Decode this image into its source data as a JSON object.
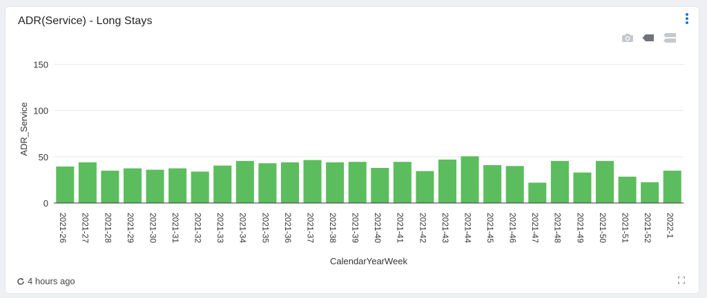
{
  "card": {
    "title": "ADR(Service) - Long Stays",
    "refresh_text": "4 hours ago"
  },
  "icons": {
    "menu": "kebab-menu-icon",
    "camera": "camera-icon",
    "tag": "tag-icon",
    "toggle": "toggle-icon",
    "refresh": "refresh-icon",
    "expand": "expand-icon"
  },
  "colors": {
    "bar": "#5cbd5e",
    "grid": "#e6e6e6",
    "axis": "#333333"
  },
  "chart_data": {
    "type": "bar",
    "xlabel": "CalendarYearWeek",
    "ylabel": "ADR_Service",
    "ylim": [
      0,
      160
    ],
    "yticks": [
      0,
      50,
      100,
      150
    ],
    "grid": true,
    "categories": [
      "2021-26",
      "2021-27",
      "2021-28",
      "2021-29",
      "2021-30",
      "2021-31",
      "2021-32",
      "2021-33",
      "2021-34",
      "2021-35",
      "2021-36",
      "2021-37",
      "2021-38",
      "2021-39",
      "2021-40",
      "2021-41",
      "2021-42",
      "2021-43",
      "2021-44",
      "2021-45",
      "2021-46",
      "2021-47",
      "2021-48",
      "2021-49",
      "2021-50",
      "2021-51",
      "2021-52",
      "2022-1"
    ],
    "values": [
      39.5,
      44,
      35,
      37.5,
      36,
      37.5,
      34,
      40.5,
      45.5,
      43,
      44,
      46.5,
      44,
      44.5,
      38,
      44.5,
      34.5,
      47,
      50.5,
      41,
      40,
      22,
      45.5,
      33,
      45.5,
      28.5,
      22.5,
      35
    ]
  }
}
